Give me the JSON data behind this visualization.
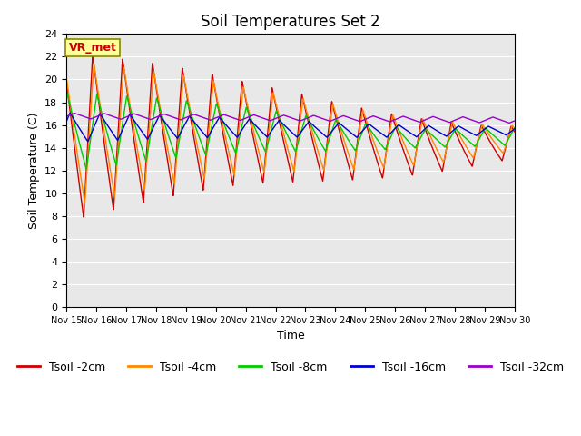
{
  "title": "Soil Temperatures Set 2",
  "xlabel": "Time",
  "ylabel": "Soil Temperature (C)",
  "annotation": "VR_met",
  "ylim": [
    0,
    24
  ],
  "yticks": [
    0,
    2,
    4,
    6,
    8,
    10,
    12,
    14,
    16,
    18,
    20,
    22,
    24
  ],
  "x_tick_labels": [
    "Nov 15",
    "Nov 16",
    "Nov 17",
    "Nov 18",
    "Nov 19",
    "Nov 20",
    "Nov 21",
    "Nov 22",
    "Nov 23",
    "Nov 24",
    "Nov 25",
    "Nov 26",
    "Nov 27",
    "Nov 28",
    "Nov 29",
    "Nov 30"
  ],
  "series_colors": [
    "#cc0000",
    "#ff8800",
    "#00cc00",
    "#0000cc",
    "#9900cc"
  ],
  "series_labels": [
    "Tsoil -2cm",
    "Tsoil -4cm",
    "Tsoil -8cm",
    "Tsoil -16cm",
    "Tsoil -32cm"
  ],
  "bg_color": "#e8e8e8",
  "fig_bg_color": "#ffffff",
  "grid_color": "#ffffff",
  "annotation_bg": "#ffff99",
  "annotation_border": "#888800",
  "title_fontsize": 12,
  "axis_fontsize": 9,
  "tick_fontsize": 8,
  "legend_fontsize": 9
}
